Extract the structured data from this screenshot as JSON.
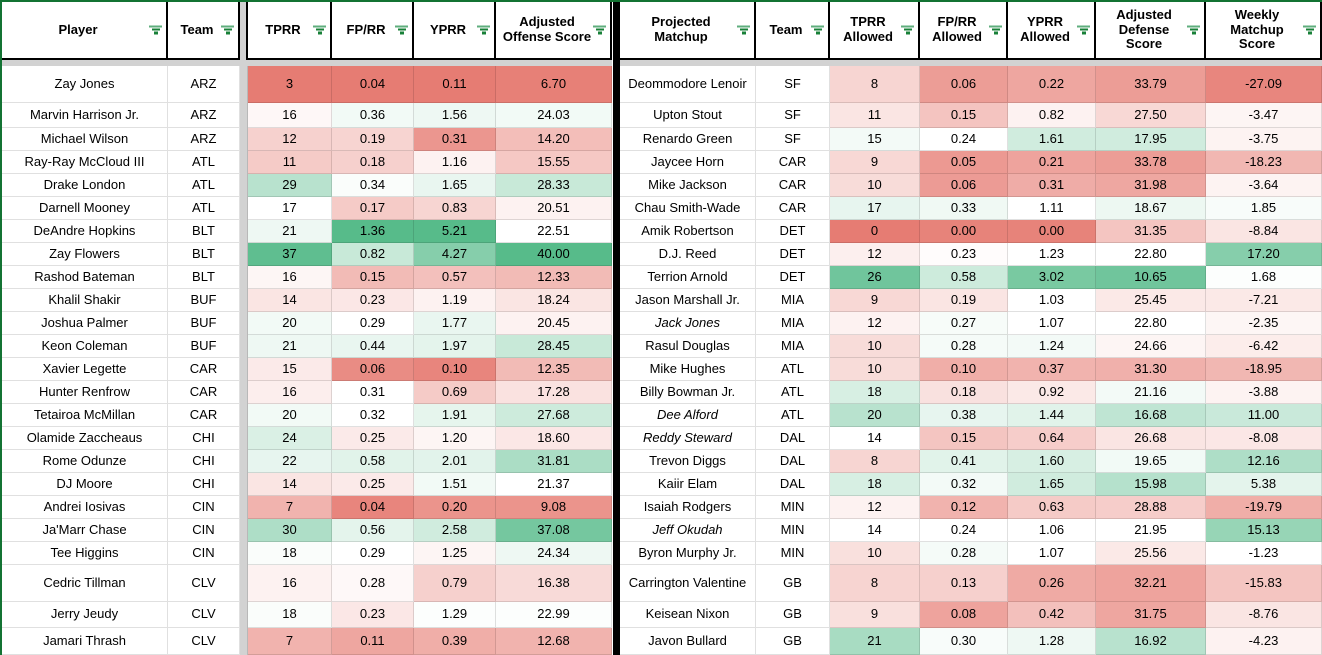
{
  "theme": {
    "scale_min_color": "#e67c73",
    "scale_mid_color": "#ffffff",
    "scale_max_color": "#57bb8a",
    "table_outline_color": "#137333",
    "filter_icon_color": "#188038",
    "hidden_band_color": "#d2d2d2"
  },
  "left_table": {
    "headers": [
      "Player",
      "Team",
      "TPRR",
      "FP/RR",
      "YPRR",
      "Adjusted Offense Score"
    ],
    "rows": [
      {
        "name": "Zay Jones",
        "team": "ARZ",
        "vals": [
          "3",
          "0.04",
          "0.11",
          "6.70"
        ],
        "tones": [
          -1,
          -1,
          -1,
          -0.97
        ]
      },
      {
        "name": "Marvin Harrison Jr.",
        "team": "ARZ",
        "vals": [
          "16",
          "0.36",
          "1.56",
          "24.03"
        ],
        "tones": [
          -0.06,
          0.08,
          0.1,
          0.08
        ]
      },
      {
        "name": "Michael Wilson",
        "team": "ARZ",
        "vals": [
          "12",
          "0.19",
          "0.31",
          "14.20"
        ],
        "tones": [
          -0.35,
          -0.33,
          -0.8,
          -0.5
        ]
      },
      {
        "name": "Ray-Ray McCloud III",
        "team": "ATL",
        "vals": [
          "11",
          "0.18",
          "1.16",
          "15.55"
        ],
        "tones": [
          -0.4,
          -0.36,
          -0.1,
          -0.42
        ]
      },
      {
        "name": "Drake London",
        "team": "ATL",
        "vals": [
          "29",
          "0.34",
          "1.65",
          "28.33"
        ],
        "tones": [
          0.42,
          0.03,
          0.13,
          0.33
        ]
      },
      {
        "name": "Darnell Mooney",
        "team": "ATL",
        "vals": [
          "17",
          "0.17",
          "0.83",
          "20.51"
        ],
        "tones": [
          0,
          -0.4,
          -0.32,
          -0.1
        ]
      },
      {
        "name": "DeAndre Hopkins",
        "team": "BLT",
        "vals": [
          "21",
          "1.36",
          "5.21",
          "22.51"
        ],
        "tones": [
          0.1,
          1,
          1,
          0
        ]
      },
      {
        "name": "Zay Flowers",
        "team": "BLT",
        "vals": [
          "37",
          "0.82",
          "4.27",
          "40.00"
        ],
        "tones": [
          0.95,
          0.33,
          0.72,
          1
        ]
      },
      {
        "name": "Rashod Bateman",
        "team": "BLT",
        "vals": [
          "16",
          "0.15",
          "0.57",
          "12.33"
        ],
        "tones": [
          -0.07,
          -0.52,
          -0.48,
          -0.52
        ]
      },
      {
        "name": "Khalil Shakir",
        "team": "BUF",
        "vals": [
          "14",
          "0.23",
          "1.19",
          "18.24"
        ],
        "tones": [
          -0.2,
          -0.18,
          -0.1,
          -0.2
        ]
      },
      {
        "name": "Joshua Palmer",
        "team": "BUF",
        "vals": [
          "20",
          "0.29",
          "1.77",
          "20.45"
        ],
        "tones": [
          0.08,
          0,
          0.13,
          -0.1
        ]
      },
      {
        "name": "Keon Coleman",
        "team": "BUF",
        "vals": [
          "21",
          "0.44",
          "1.97",
          "28.45"
        ],
        "tones": [
          0.1,
          0.13,
          0.16,
          0.33
        ]
      },
      {
        "name": "Xavier Legette",
        "team": "CAR",
        "vals": [
          "15",
          "0.06",
          "0.10",
          "12.35"
        ],
        "tones": [
          -0.16,
          -0.88,
          -0.93,
          -0.52
        ]
      },
      {
        "name": "Hunter Renfrow",
        "team": "CAR",
        "vals": [
          "16",
          "0.31",
          "0.69",
          "17.28"
        ],
        "tones": [
          -0.13,
          0,
          -0.4,
          -0.22
        ]
      },
      {
        "name": "Tetairoa McMillan",
        "team": "CAR",
        "vals": [
          "20",
          "0.32",
          "1.91",
          "27.68"
        ],
        "tones": [
          0.08,
          0,
          0.15,
          0.3
        ]
      },
      {
        "name": "Olamide Zaccheaus",
        "team": "CHI",
        "vals": [
          "24",
          "0.25",
          "1.20",
          "18.60"
        ],
        "tones": [
          0.22,
          -0.16,
          -0.08,
          -0.18
        ]
      },
      {
        "name": "Rome Odunze",
        "team": "CHI",
        "vals": [
          "22",
          "0.58",
          "2.01",
          "31.81"
        ],
        "tones": [
          0.14,
          0.18,
          0.17,
          0.5
        ]
      },
      {
        "name": "DJ Moore",
        "team": "CHI",
        "vals": [
          "14",
          "0.25",
          "1.51",
          "21.37"
        ],
        "tones": [
          -0.2,
          -0.16,
          0.08,
          0
        ]
      },
      {
        "name": "Andrei Iosivas",
        "team": "CIN",
        "vals": [
          "7",
          "0.04",
          "0.20",
          "9.08"
        ],
        "tones": [
          -0.58,
          -0.93,
          -0.82,
          -0.82
        ]
      },
      {
        "name": "Ja'Marr Chase",
        "team": "CIN",
        "vals": [
          "30",
          "0.56",
          "2.58",
          "37.08"
        ],
        "tones": [
          0.48,
          0.16,
          0.28,
          0.82
        ]
      },
      {
        "name": "Tee Higgins",
        "team": "CIN",
        "vals": [
          "18",
          "0.29",
          "1.25",
          "24.34"
        ],
        "tones": [
          0.03,
          0,
          -0.08,
          0.1
        ]
      },
      {
        "name": "Cedric Tillman",
        "team": "CLV",
        "vals": [
          "16",
          "0.28",
          "0.79",
          "16.38"
        ],
        "tones": [
          -0.1,
          -0.05,
          -0.36,
          -0.28
        ]
      },
      {
        "name": "Jerry Jeudy",
        "team": "CLV",
        "vals": [
          "18",
          "0.23",
          "1.29",
          "22.99"
        ],
        "tones": [
          0.03,
          -0.18,
          0.02,
          0.02
        ]
      },
      {
        "name": "Jamari Thrash",
        "team": "CLV",
        "vals": [
          "7",
          "0.11",
          "0.39",
          "12.68"
        ],
        "tones": [
          -0.58,
          -0.68,
          -0.62,
          -0.58
        ]
      }
    ]
  },
  "right_table": {
    "headers": [
      "Projected Matchup",
      "Team",
      "TPRR Allowed",
      "FP/RR Allowed",
      "YPRR Allowed",
      "Adjusted Defense Score",
      "Weekly Matchup Score"
    ],
    "rows": [
      {
        "name": "Deommodore Lenoir",
        "team": "SF",
        "vals": [
          "8",
          "0.06",
          "0.22",
          "33.79",
          "-27.09"
        ],
        "tones": [
          -0.32,
          -0.75,
          -0.68,
          -0.75,
          -0.92
        ]
      },
      {
        "name": "Upton Stout",
        "team": "SF",
        "vals": [
          "11",
          "0.15",
          "0.82",
          "27.50",
          "-3.47"
        ],
        "tones": [
          -0.2,
          -0.45,
          -0.1,
          -0.3,
          -0.08
        ]
      },
      {
        "name": "Renardo Green",
        "team": "SF",
        "vals": [
          "15",
          "0.24",
          "1.61",
          "17.95",
          "-3.75"
        ],
        "tones": [
          0.07,
          0,
          0.28,
          0.28,
          -0.09
        ]
      },
      {
        "name": "Jaycee Horn",
        "team": "CAR",
        "vals": [
          "9",
          "0.05",
          "0.21",
          "33.78",
          "-18.23"
        ],
        "tones": [
          -0.3,
          -0.78,
          -0.7,
          -0.75,
          -0.55
        ]
      },
      {
        "name": "Mike Jackson",
        "team": "CAR",
        "vals": [
          "10",
          "0.06",
          "0.31",
          "31.98",
          "-3.64"
        ],
        "tones": [
          -0.27,
          -0.76,
          -0.63,
          -0.67,
          -0.09
        ]
      },
      {
        "name": "Chau Smith-Wade",
        "team": "CAR",
        "vals": [
          "17",
          "0.33",
          "1.11",
          "18.67",
          "1.85"
        ],
        "tones": [
          0.14,
          0.09,
          0,
          0.11,
          0.04
        ]
      },
      {
        "name": "Amik Robertson",
        "team": "DET",
        "vals": [
          "0",
          "0.00",
          "0.00",
          "31.35",
          "-8.84"
        ],
        "tones": [
          -1,
          -0.95,
          -0.95,
          -0.44,
          -0.2
        ]
      },
      {
        "name": "D.J. Reed",
        "team": "DET",
        "vals": [
          "12",
          "0.23",
          "1.23",
          "22.80",
          "17.20"
        ],
        "tones": [
          -0.12,
          -0.02,
          0,
          0,
          0.72
        ]
      },
      {
        "name": "Terrion Arnold",
        "team": "DET",
        "vals": [
          "26",
          "0.58",
          "3.02",
          "10.65",
          "1.68"
        ],
        "tones": [
          0.85,
          0.3,
          0.8,
          0.85,
          0.02
        ]
      },
      {
        "name": "Jason Marshall Jr.",
        "team": "MIA",
        "vals": [
          "9",
          "0.19",
          "1.03",
          "25.45",
          "-7.21"
        ],
        "tones": [
          -0.3,
          -0.2,
          0,
          -0.17,
          -0.17
        ]
      },
      {
        "name": "Jack Jones",
        "team": "MIA",
        "italic": true,
        "vals": [
          "12",
          "0.27",
          "1.07",
          "22.80",
          "-2.35"
        ],
        "tones": [
          -0.1,
          0.05,
          0,
          0,
          -0.07
        ]
      },
      {
        "name": "Rasul Douglas",
        "team": "MIA",
        "vals": [
          "10",
          "0.28",
          "1.24",
          "24.66",
          "-6.42"
        ],
        "tones": [
          -0.27,
          0.06,
          0.07,
          -0.08,
          -0.14
        ]
      },
      {
        "name": "Mike Hughes",
        "team": "ATL",
        "vals": [
          "10",
          "0.10",
          "0.37",
          "31.30",
          "-18.95"
        ],
        "tones": [
          -0.27,
          -0.62,
          -0.58,
          -0.6,
          -0.55
        ]
      },
      {
        "name": "Billy Bowman Jr.",
        "team": "ATL",
        "vals": [
          "18",
          "0.18",
          "0.92",
          "21.16",
          "-3.88"
        ],
        "tones": [
          0.24,
          -0.23,
          -0.17,
          0.07,
          -0.09
        ]
      },
      {
        "name": "Dee Alford",
        "team": "ATL",
        "italic": true,
        "vals": [
          "20",
          "0.38",
          "1.44",
          "16.68",
          "11.00"
        ],
        "tones": [
          0.42,
          0.14,
          0.18,
          0.38,
          0.32
        ]
      },
      {
        "name": "Reddy Steward",
        "team": "DAL",
        "italic": true,
        "vals": [
          "14",
          "0.15",
          "0.64",
          "26.68",
          "-8.08"
        ],
        "tones": [
          0,
          -0.44,
          -0.38,
          -0.2,
          -0.18
        ]
      },
      {
        "name": "Trevon Diggs",
        "team": "DAL",
        "vals": [
          "8",
          "0.41",
          "1.60",
          "19.65",
          "12.16"
        ],
        "tones": [
          -0.32,
          0.18,
          0.24,
          0.08,
          0.48
        ]
      },
      {
        "name": "Kaiir Elam",
        "team": "DAL",
        "vals": [
          "18",
          "0.32",
          "1.65",
          "15.98",
          "5.38"
        ],
        "tones": [
          0.24,
          0.07,
          0.28,
          0.44,
          0.16
        ]
      },
      {
        "name": "Isaiah Rodgers",
        "team": "MIN",
        "vals": [
          "12",
          "0.12",
          "0.63",
          "28.88",
          "-19.79"
        ],
        "tones": [
          -0.1,
          -0.58,
          -0.4,
          -0.38,
          -0.62
        ]
      },
      {
        "name": "Jeff Okudah",
        "team": "MIN",
        "italic": true,
        "vals": [
          "14",
          "0.24",
          "1.06",
          "21.95",
          "15.13"
        ],
        "tones": [
          0,
          0,
          0,
          0,
          0.62
        ]
      },
      {
        "name": "Byron Murphy Jr.",
        "team": "MIN",
        "vals": [
          "10",
          "0.28",
          "1.07",
          "25.56",
          "-1.23"
        ],
        "tones": [
          -0.24,
          0.06,
          0,
          -0.17,
          0
        ]
      },
      {
        "name": "Carrington Valentine",
        "team": "GB",
        "vals": [
          "8",
          "0.13",
          "0.26",
          "32.21",
          "-15.83"
        ],
        "tones": [
          -0.33,
          -0.36,
          -0.65,
          -0.7,
          -0.44
        ]
      },
      {
        "name": "Keisean Nixon",
        "team": "GB",
        "vals": [
          "9",
          "0.08",
          "0.42",
          "31.75",
          "-8.76"
        ],
        "tones": [
          -0.24,
          -0.7,
          -0.48,
          -0.68,
          -0.2
        ]
      },
      {
        "name": "Javon Bullard",
        "team": "GB",
        "vals": [
          "21",
          "0.30",
          "1.28",
          "16.92",
          "-4.23"
        ],
        "tones": [
          0.52,
          0.04,
          0.1,
          0.42,
          -0.1
        ]
      }
    ]
  }
}
